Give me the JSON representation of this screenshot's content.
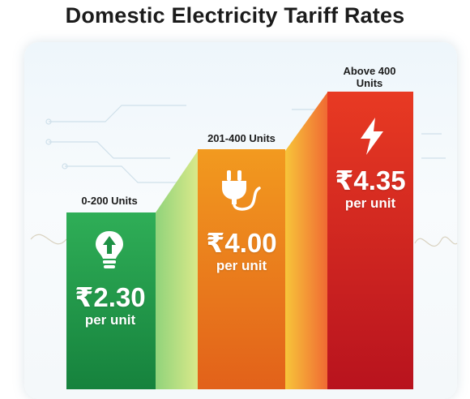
{
  "title": "Domestic Electricity Tariff Rates",
  "chart_data": {
    "type": "bar",
    "title": "Domestic Electricity Tariff Rates",
    "categories": [
      "0-200 Units",
      "201-400 Units",
      "Above 400 Units"
    ],
    "values": [
      2.3,
      4.0,
      4.35
    ],
    "value_labels": [
      "₹2.30",
      "₹4.00",
      "₹4.35"
    ],
    "unit_label": "per unit",
    "bar_colors": [
      [
        "#2fae57",
        "#16823d"
      ],
      [
        "#f29a1f",
        "#e2611a"
      ],
      [
        "#e83a23",
        "#b8131e"
      ]
    ],
    "icons": [
      "lightbulb-icon",
      "plug-icon",
      "lightning-icon"
    ]
  }
}
